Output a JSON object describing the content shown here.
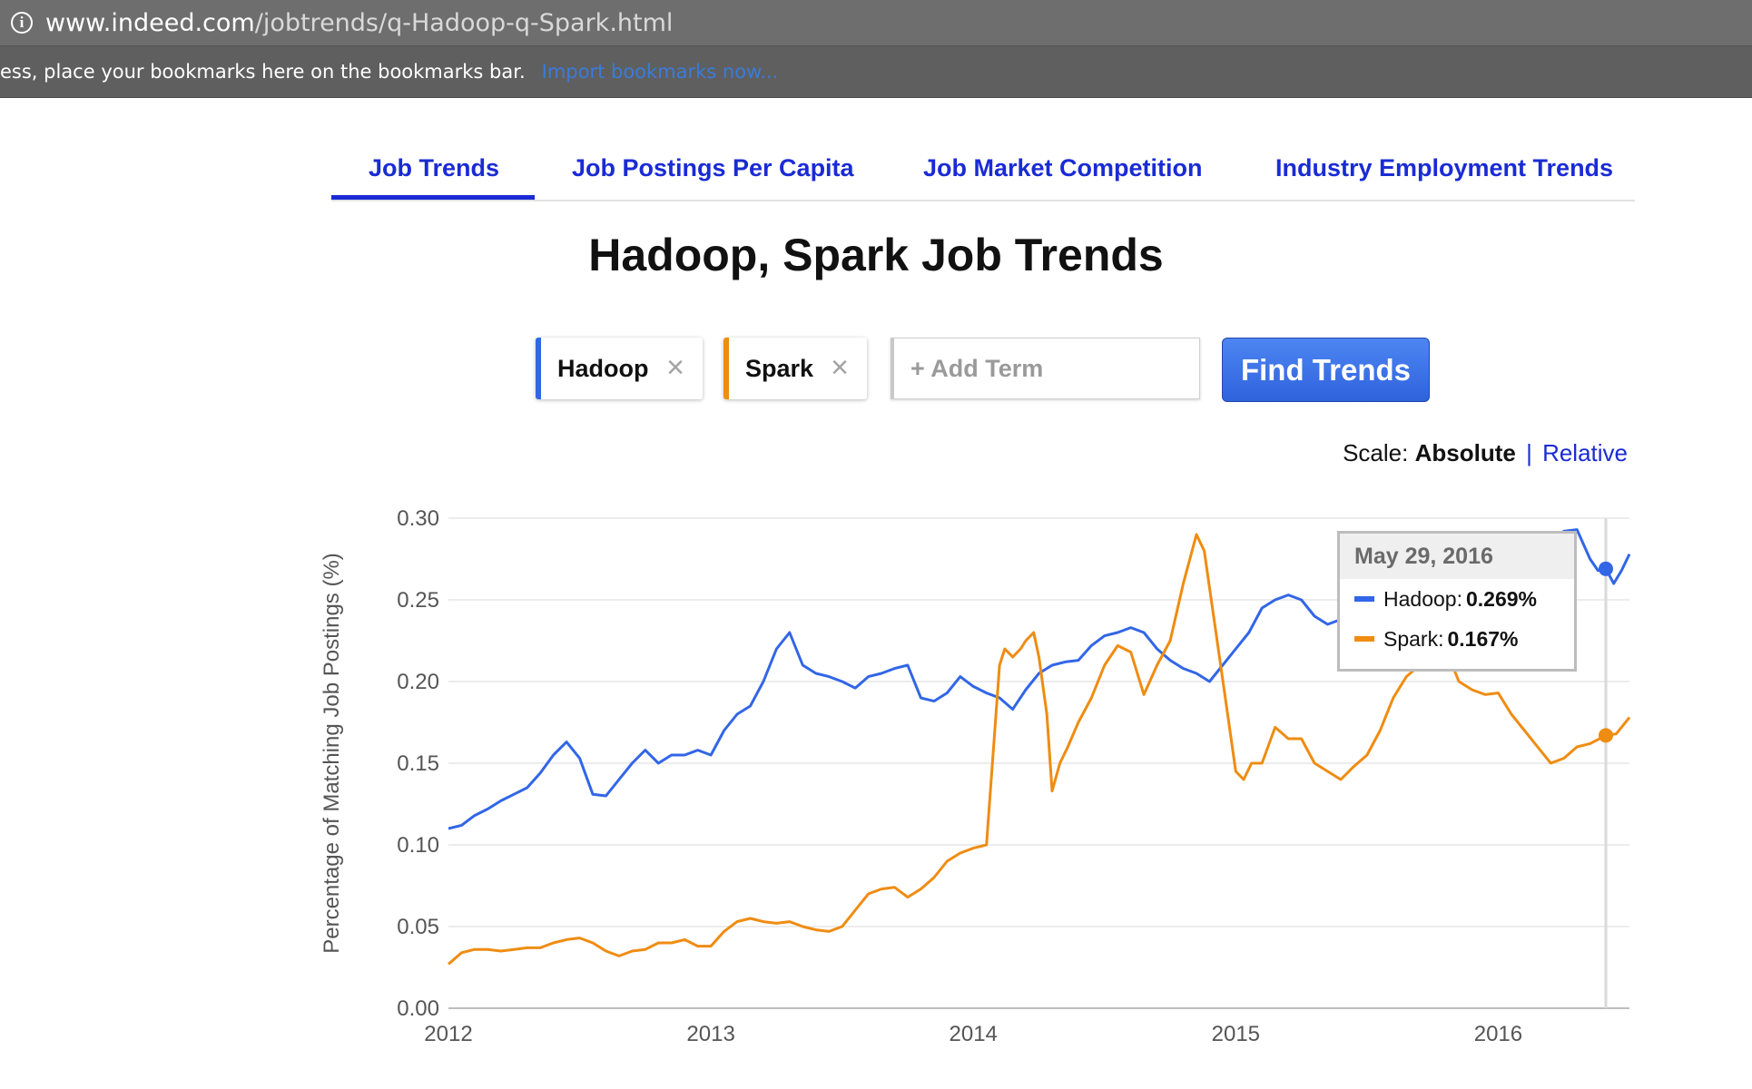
{
  "browser": {
    "url_host": "www.indeed.com",
    "url_path": "/jobtrends/q-Hadoop-q-Spark.html",
    "bookmarks_message": "ess, place your bookmarks here on the bookmarks bar.",
    "bookmarks_import": "Import bookmarks now..."
  },
  "tabs": [
    {
      "label": "Job Trends",
      "active": true
    },
    {
      "label": "Job Postings Per Capita",
      "active": false
    },
    {
      "label": "Job Market Competition",
      "active": false
    },
    {
      "label": "Industry Employment Trends",
      "active": false
    }
  ],
  "page_title": "Hadoop, Spark Job Trends",
  "terms": [
    {
      "label": "Hadoop",
      "color": "#3266e6"
    },
    {
      "label": "Spark",
      "color": "#ef8c12"
    }
  ],
  "add_term_placeholder": "+ Add Term",
  "find_button": "Find Trends",
  "scale": {
    "label": "Scale:",
    "absolute": "Absolute",
    "separator": "|",
    "relative": "Relative"
  },
  "tooltip": {
    "date": "May 29, 2016",
    "rows": [
      {
        "name": "Hadoop",
        "sep": ":",
        "value": "0.269%",
        "color": "#3266e6"
      },
      {
        "name": "Spark",
        "sep": ":",
        "value": "0.167%",
        "color": "#ef8c12"
      }
    ]
  },
  "chart_data": {
    "type": "line",
    "ylabel": "Percentage of Matching Job Postings (%)",
    "xlabel": "",
    "xlim": [
      2012.0,
      2016.5
    ],
    "ylim": [
      0,
      0.3
    ],
    "yticks": [
      "0.00",
      "0.05",
      "0.10",
      "0.15",
      "0.20",
      "0.25",
      "0.30"
    ],
    "xticks": [
      "2012",
      "2013",
      "2014",
      "2015",
      "2016"
    ],
    "grid": true,
    "hover_x": 2016.41,
    "series": [
      {
        "name": "Hadoop",
        "color": "#3266e6",
        "x": [
          2012.0,
          2012.05,
          2012.1,
          2012.15,
          2012.2,
          2012.25,
          2012.3,
          2012.35,
          2012.4,
          2012.45,
          2012.5,
          2012.55,
          2012.6,
          2012.65,
          2012.7,
          2012.75,
          2012.8,
          2012.85,
          2012.9,
          2012.95,
          2013.0,
          2013.05,
          2013.1,
          2013.15,
          2013.2,
          2013.25,
          2013.3,
          2013.35,
          2013.4,
          2013.45,
          2013.5,
          2013.55,
          2013.6,
          2013.65,
          2013.7,
          2013.75,
          2013.8,
          2013.85,
          2013.9,
          2013.95,
          2014.0,
          2014.05,
          2014.1,
          2014.15,
          2014.2,
          2014.25,
          2014.3,
          2014.35,
          2014.4,
          2014.45,
          2014.5,
          2014.55,
          2014.6,
          2014.65,
          2014.7,
          2014.75,
          2014.8,
          2014.85,
          2014.9,
          2014.95,
          2015.0,
          2015.05,
          2015.1,
          2015.15,
          2015.2,
          2015.25,
          2015.3,
          2015.35,
          2015.4,
          2015.5,
          2015.6,
          2015.7,
          2015.8,
          2015.9,
          2016.0,
          2016.1,
          2016.2,
          2016.25,
          2016.3,
          2016.35,
          2016.38,
          2016.41,
          2016.44,
          2016.47,
          2016.5
        ],
        "y": [
          0.11,
          0.112,
          0.118,
          0.122,
          0.127,
          0.131,
          0.135,
          0.144,
          0.155,
          0.163,
          0.153,
          0.131,
          0.13,
          0.14,
          0.15,
          0.158,
          0.15,
          0.155,
          0.155,
          0.158,
          0.155,
          0.17,
          0.18,
          0.185,
          0.2,
          0.22,
          0.23,
          0.21,
          0.205,
          0.203,
          0.2,
          0.196,
          0.203,
          0.205,
          0.208,
          0.21,
          0.19,
          0.188,
          0.193,
          0.203,
          0.197,
          0.193,
          0.19,
          0.183,
          0.195,
          0.205,
          0.21,
          0.212,
          0.213,
          0.222,
          0.228,
          0.23,
          0.233,
          0.23,
          0.22,
          0.213,
          0.208,
          0.205,
          0.2,
          0.21,
          0.22,
          0.23,
          0.245,
          0.25,
          0.253,
          0.25,
          0.24,
          0.235,
          0.238,
          0.242,
          0.245,
          0.25,
          0.255,
          0.26,
          0.268,
          0.275,
          0.285,
          0.292,
          0.293,
          0.275,
          0.268,
          0.269,
          0.26,
          0.268,
          0.278
        ]
      },
      {
        "name": "Spark",
        "color": "#ef8c12",
        "x": [
          2012.0,
          2012.05,
          2012.1,
          2012.15,
          2012.2,
          2012.25,
          2012.3,
          2012.35,
          2012.4,
          2012.45,
          2012.5,
          2012.55,
          2012.6,
          2012.65,
          2012.7,
          2012.75,
          2012.8,
          2012.85,
          2012.9,
          2012.95,
          2013.0,
          2013.05,
          2013.1,
          2013.15,
          2013.2,
          2013.25,
          2013.3,
          2013.35,
          2013.4,
          2013.45,
          2013.5,
          2013.55,
          2013.6,
          2013.65,
          2013.7,
          2013.75,
          2013.8,
          2013.85,
          2013.9,
          2013.95,
          2014.0,
          2014.05,
          2014.1,
          2014.12,
          2014.15,
          2014.18,
          2014.2,
          2014.23,
          2014.25,
          2014.28,
          2014.3,
          2014.33,
          2014.36,
          2014.4,
          2014.45,
          2014.5,
          2014.55,
          2014.6,
          2014.65,
          2014.7,
          2014.75,
          2014.8,
          2014.85,
          2014.88,
          2014.92,
          2014.96,
          2015.0,
          2015.03,
          2015.06,
          2015.1,
          2015.15,
          2015.2,
          2015.25,
          2015.3,
          2015.35,
          2015.4,
          2015.45,
          2015.5,
          2015.55,
          2015.6,
          2015.65,
          2015.7,
          2015.75,
          2015.8,
          2015.85,
          2015.9,
          2015.95,
          2016.0,
          2016.05,
          2016.1,
          2016.15,
          2016.2,
          2016.25,
          2016.3,
          2016.35,
          2016.41,
          2016.45,
          2016.5
        ],
        "y": [
          0.027,
          0.034,
          0.036,
          0.036,
          0.035,
          0.036,
          0.037,
          0.037,
          0.04,
          0.042,
          0.043,
          0.04,
          0.035,
          0.032,
          0.035,
          0.036,
          0.04,
          0.04,
          0.042,
          0.038,
          0.038,
          0.047,
          0.053,
          0.055,
          0.053,
          0.052,
          0.053,
          0.05,
          0.048,
          0.047,
          0.05,
          0.06,
          0.07,
          0.073,
          0.074,
          0.068,
          0.073,
          0.08,
          0.09,
          0.095,
          0.098,
          0.1,
          0.21,
          0.22,
          0.215,
          0.22,
          0.225,
          0.23,
          0.215,
          0.18,
          0.133,
          0.15,
          0.16,
          0.175,
          0.19,
          0.21,
          0.222,
          0.218,
          0.192,
          0.21,
          0.225,
          0.26,
          0.29,
          0.28,
          0.235,
          0.19,
          0.145,
          0.14,
          0.15,
          0.15,
          0.172,
          0.165,
          0.165,
          0.15,
          0.145,
          0.14,
          0.148,
          0.155,
          0.17,
          0.19,
          0.203,
          0.21,
          0.215,
          0.22,
          0.2,
          0.195,
          0.192,
          0.193,
          0.18,
          0.17,
          0.16,
          0.15,
          0.153,
          0.16,
          0.162,
          0.167,
          0.168,
          0.178
        ]
      }
    ]
  }
}
